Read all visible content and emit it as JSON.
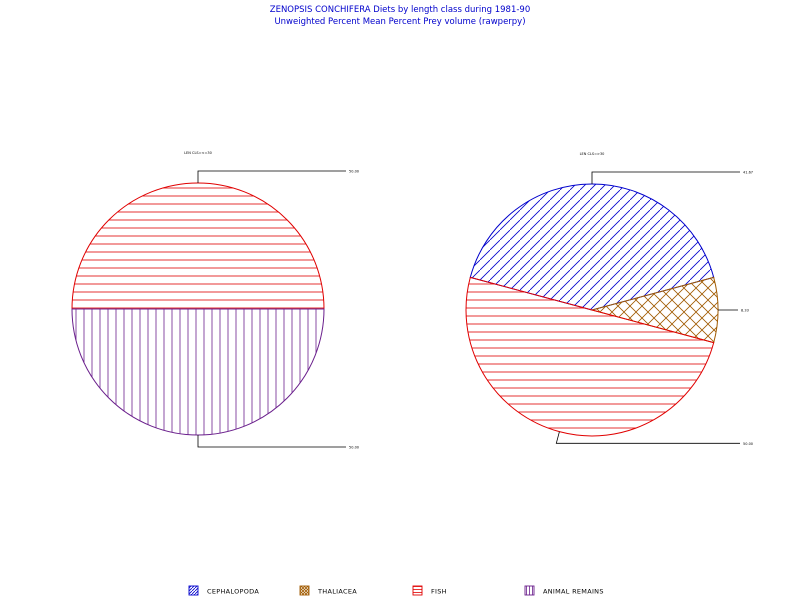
{
  "colors": {
    "cephalopoda": "#0000cc",
    "thaliacea": "#a05a00",
    "fish": "#e00000",
    "animal_remains": "#6a1f8c",
    "leader": "#000000",
    "title": "#0000cc"
  },
  "chart_data": {
    "type": "pie",
    "title": "ZENOPSIS CONCHIFERA Diets by length class during 1981-90",
    "subtitle": "Unweighted Percent Mean Percent Prey  volume (rawperpy)",
    "categories": [
      "CEPHALOPODA",
      "THALIACEA",
      "FISH",
      "ANIMAL REMAINS"
    ],
    "legend": [
      {
        "label": "CEPHALOPODA",
        "key": "cephalopoda",
        "pattern": "diag"
      },
      {
        "label": "THALIACEA",
        "key": "thaliacea",
        "pattern": "cross"
      },
      {
        "label": "FISH",
        "key": "fish",
        "pattern": "horiz"
      },
      {
        "label": "ANIMAL REMAINS",
        "key": "animal_remains",
        "pattern": "vert"
      }
    ],
    "pies": [
      {
        "label": "LEN CLS=<=30",
        "slices": [
          {
            "category": "FISH",
            "value": 50.0,
            "label": "50.00"
          },
          {
            "category": "ANIMAL REMAINS",
            "value": 50.0,
            "label": "50.00"
          }
        ]
      },
      {
        "label": "LEN CLS=>30",
        "slices": [
          {
            "category": "CEPHALOPODA",
            "value": 41.67,
            "label": "41.67"
          },
          {
            "category": "THALIACEA",
            "value": 8.33,
            "label": "8.33"
          },
          {
            "category": "FISH",
            "value": 50.0,
            "label": "50.00"
          }
        ]
      }
    ]
  }
}
